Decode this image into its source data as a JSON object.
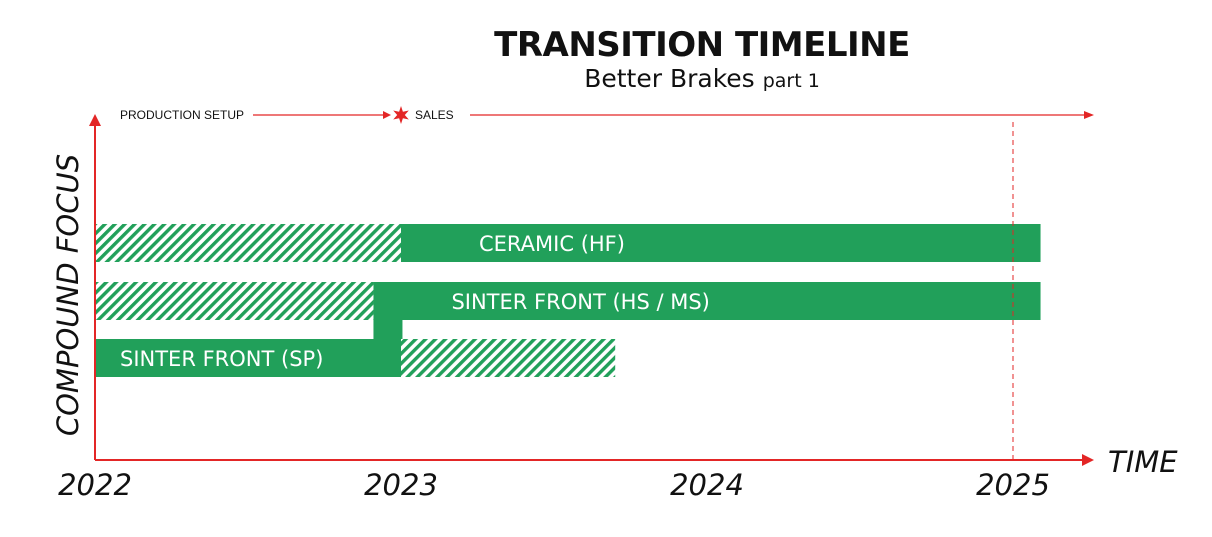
{
  "chart_data": {
    "type": "bar",
    "title": "TRANSITION TIMELINE",
    "subtitle": "Better Brakes",
    "subtitle_suffix": "part 1",
    "xlabel": "TIME",
    "ylabel": "COMPOUND FOCUS",
    "xlim": [
      2022,
      2025.3
    ],
    "x_ticks": [
      "2022",
      "2023",
      "2024",
      "2025"
    ],
    "x_tick_values": [
      2022,
      2023,
      2024,
      2025
    ],
    "grid": false,
    "phases": [
      {
        "label": "PRODUCTION SETUP",
        "start": 2022,
        "end": 2023
      },
      {
        "label": "SALES",
        "start": 2023,
        "end": 2025.3
      }
    ],
    "milestone": {
      "x": 2023,
      "marker": "star"
    },
    "reference_line": {
      "x": 2025,
      "style": "dashed"
    },
    "series": [
      {
        "name": "CERAMIC (HF)",
        "segments": [
          {
            "start": 2022,
            "end": 2023,
            "kind": "setup"
          },
          {
            "start": 2023,
            "end": 2025.09,
            "kind": "focus"
          }
        ]
      },
      {
        "name": "SINTER FRONT (HS / MS)",
        "segments": [
          {
            "start": 2022,
            "end": 2022.91,
            "kind": "setup"
          },
          {
            "start": 2022.91,
            "end": 2025.09,
            "kind": "focus"
          }
        ]
      },
      {
        "name": "SINTER FRONT (SP)",
        "segments": [
          {
            "start": 2022,
            "end": 2023,
            "kind": "focus"
          },
          {
            "start": 2023,
            "end": 2023.7,
            "kind": "setup"
          }
        ]
      }
    ],
    "colors": {
      "focus": "#21a05a",
      "hatch": "#21a05a",
      "axis": "#e32626",
      "text": "#111111"
    }
  }
}
